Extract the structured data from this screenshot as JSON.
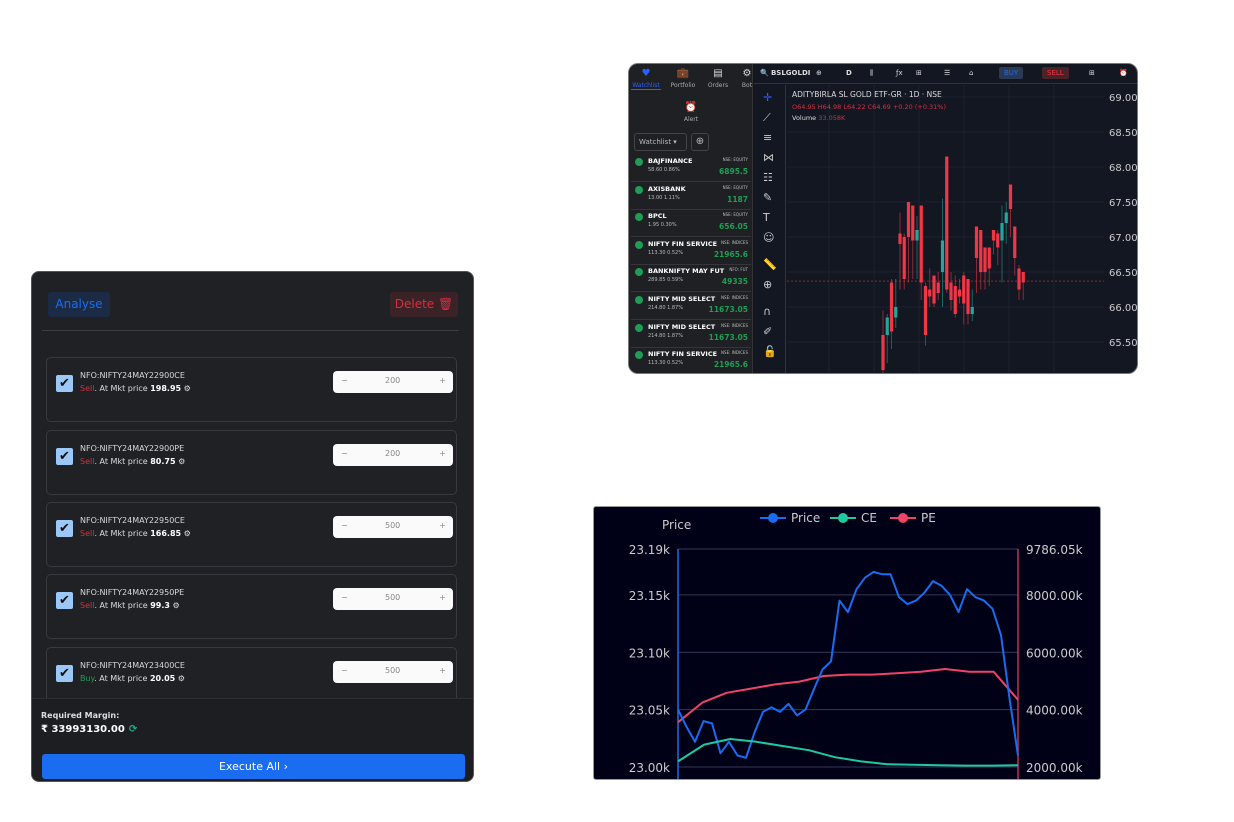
{
  "basket": {
    "analyse_label": "Analyse",
    "delete_label": "Delete",
    "orders": [
      {
        "symbol": "NFO:NIFTY24MAY22900CE",
        "side": "Sell",
        "mode": ". At Mkt price",
        "price": "198.95",
        "qty": "200",
        "checked": true
      },
      {
        "symbol": "NFO:NIFTY24MAY22900PE",
        "side": "Sell",
        "mode": ". At Mkt price",
        "price": "80.75",
        "qty": "200",
        "checked": true
      },
      {
        "symbol": "NFO:NIFTY24MAY22950CE",
        "side": "Sell",
        "mode": ". At Mkt price",
        "price": "166.85",
        "qty": "500",
        "checked": true
      },
      {
        "symbol": "NFO:NIFTY24MAY22950PE",
        "side": "Sell",
        "mode": ". At Mkt price",
        "price": "99.3",
        "qty": "500",
        "checked": true
      },
      {
        "symbol": "NFO:NIFTY24MAY23400CE",
        "side": "Buy",
        "mode": ". At Mkt price",
        "price": "20.05",
        "qty": "500",
        "checked": true
      }
    ],
    "required_margin_label": "Required Margin:",
    "required_margin": "₹ 33993130.00",
    "execute_label": "Execute All ›"
  },
  "terminal": {
    "tabs": [
      "Watchlist",
      "Portfolio",
      "Orders",
      "Bot"
    ],
    "alert_label": "Alert",
    "watchlist_select": "Watchlist ▾",
    "watchlist": [
      {
        "name": "BAJFINANCE",
        "change": "58.60 0.86%",
        "exchange": "NSE: EQUITY",
        "price": "6895.5"
      },
      {
        "name": "AXISBANK",
        "change": "13.00 1.11%",
        "exchange": "NSE: EQUITY",
        "price": "1187"
      },
      {
        "name": "BPCL",
        "change": "1.95 0.30%",
        "exchange": "NSE: EQUITY",
        "price": "656.05"
      },
      {
        "name": "NIFTY FIN SERVICE",
        "change": "113.30 0.52%",
        "exchange": "NSE: INDICES",
        "price": "21965.6"
      },
      {
        "name": "BANKNIFTY MAY FUT",
        "change": "289.85 0.59%",
        "exchange": "NFO: FUT",
        "price": "49335"
      },
      {
        "name": "NIFTY MID SELECT",
        "change": "214.80 1.87%",
        "exchange": "NSE: INDICES",
        "price": "11673.05"
      },
      {
        "name": "NIFTY MID SELECT",
        "change": "214.80 1.87%",
        "exchange": "NSE: INDICES",
        "price": "11673.05"
      },
      {
        "name": "NIFTY FIN SERVICE",
        "change": "113.30 0.52%",
        "exchange": "NSE: INDICES",
        "price": "21965.6"
      }
    ],
    "symbol": "BSLGOLDI",
    "interval": "D",
    "buy_label": "BUY",
    "sell_label": "SELL",
    "instrument_title": "ADITYBIRLA SL GOLD ETF-GR · 1D · NSE",
    "ohlc": "O64.95 H64.98 L64.22 C64.69 +0.20 (+0.31%)",
    "volume_label": "Volume",
    "volume": "33.058K",
    "colors": {
      "up": "#26a69a",
      "down": "#f23645"
    }
  },
  "chart_data": [
    {
      "type": "candlestick",
      "y_ticks": [
        "69.00",
        "68.50",
        "68.00",
        "67.50",
        "67.00",
        "66.50",
        "66.00",
        "65.50"
      ],
      "ylim": [
        65.3,
        69.1
      ],
      "last_price": 66.37,
      "ohlc": [
        [
          65.6,
          65.95,
          65.05,
          65.1
        ],
        [
          65.6,
          65.9,
          65.2,
          65.85
        ],
        [
          66.35,
          66.4,
          65.4,
          65.65
        ],
        [
          65.85,
          66.4,
          65.7,
          66.0
        ],
        [
          67.05,
          67.35,
          66.25,
          66.9
        ],
        [
          67.0,
          67.05,
          66.25,
          66.4
        ],
        [
          67.5,
          67.5,
          66.35,
          67.0
        ],
        [
          67.45,
          67.45,
          66.4,
          66.95
        ],
        [
          66.95,
          67.3,
          66.4,
          67.1
        ],
        [
          67.45,
          67.45,
          66.1,
          66.35
        ],
        [
          66.3,
          66.35,
          65.45,
          65.6
        ],
        [
          66.25,
          66.55,
          66.0,
          66.15
        ],
        [
          66.45,
          66.45,
          66.0,
          66.05
        ],
        [
          66.35,
          66.5,
          66.1,
          66.2
        ],
        [
          66.5,
          67.55,
          66.0,
          66.95
        ],
        [
          68.15,
          68.15,
          66.2,
          66.25
        ],
        [
          66.35,
          66.5,
          65.95,
          66.1
        ],
        [
          66.3,
          66.45,
          65.85,
          65.9
        ],
        [
          66.25,
          66.4,
          66.05,
          66.15
        ],
        [
          66.45,
          66.5,
          65.75,
          66.05
        ],
        [
          66.4,
          66.4,
          65.75,
          65.9
        ],
        [
          65.9,
          66.25,
          65.8,
          66.0
        ],
        [
          67.15,
          67.15,
          66.2,
          66.7
        ],
        [
          67.1,
          67.1,
          66.25,
          66.5
        ],
        [
          66.85,
          66.85,
          66.25,
          66.5
        ],
        [
          66.85,
          66.85,
          66.3,
          66.55
        ],
        [
          67.1,
          67.1,
          66.75,
          66.95
        ],
        [
          67.05,
          67.1,
          66.6,
          66.85
        ],
        [
          66.95,
          67.45,
          66.35,
          67.2
        ],
        [
          67.2,
          67.5,
          66.9,
          67.35
        ],
        [
          67.75,
          67.75,
          67.0,
          67.4
        ],
        [
          67.15,
          67.15,
          66.45,
          66.7
        ],
        [
          66.55,
          66.6,
          66.1,
          66.25
        ],
        [
          66.5,
          66.5,
          66.1,
          66.35
        ]
      ]
    },
    {
      "type": "line",
      "ylabel": "Price",
      "y_ticks_left": [
        "23.19k",
        "23.15k",
        "23.10k",
        "23.05k",
        "23.00k"
      ],
      "ylim_left": [
        23000,
        23190
      ],
      "y_ticks_right": [
        "9786.05k",
        "8000.00k",
        "6000.00k",
        "4000.00k",
        "2000.00k"
      ],
      "ylim_right": [
        2000,
        9786.05
      ],
      "legend": "top",
      "series": [
        {
          "name": "Price",
          "axis": "left",
          "color": "#1a6cf0",
          "values": [
            23050,
            23035,
            23022,
            23040,
            23038,
            23012,
            23022,
            23010,
            23008,
            23030,
            23048,
            23052,
            23048,
            23055,
            23045,
            23050,
            23068,
            23085,
            23092,
            23145,
            23135,
            23155,
            23165,
            23170,
            23168,
            23168,
            23148,
            23142,
            23145,
            23152,
            23162,
            23158,
            23150,
            23135,
            23155,
            23148,
            23145,
            23138,
            23115,
            23060,
            23010
          ]
        },
        {
          "name": "CE",
          "axis": "right",
          "color": "#1fc9a0",
          "values": [
            2200,
            2800,
            3000,
            2900,
            2750,
            2600,
            2350,
            2200,
            2100,
            2080,
            2060,
            2050,
            2050,
            2060
          ]
        },
        {
          "name": "PE",
          "axis": "right",
          "color": "#f0436a",
          "values": [
            3600,
            4300,
            4650,
            4800,
            4950,
            5050,
            5250,
            5300,
            5300,
            5350,
            5400,
            5500,
            5400,
            5400,
            4400
          ]
        }
      ]
    }
  ]
}
